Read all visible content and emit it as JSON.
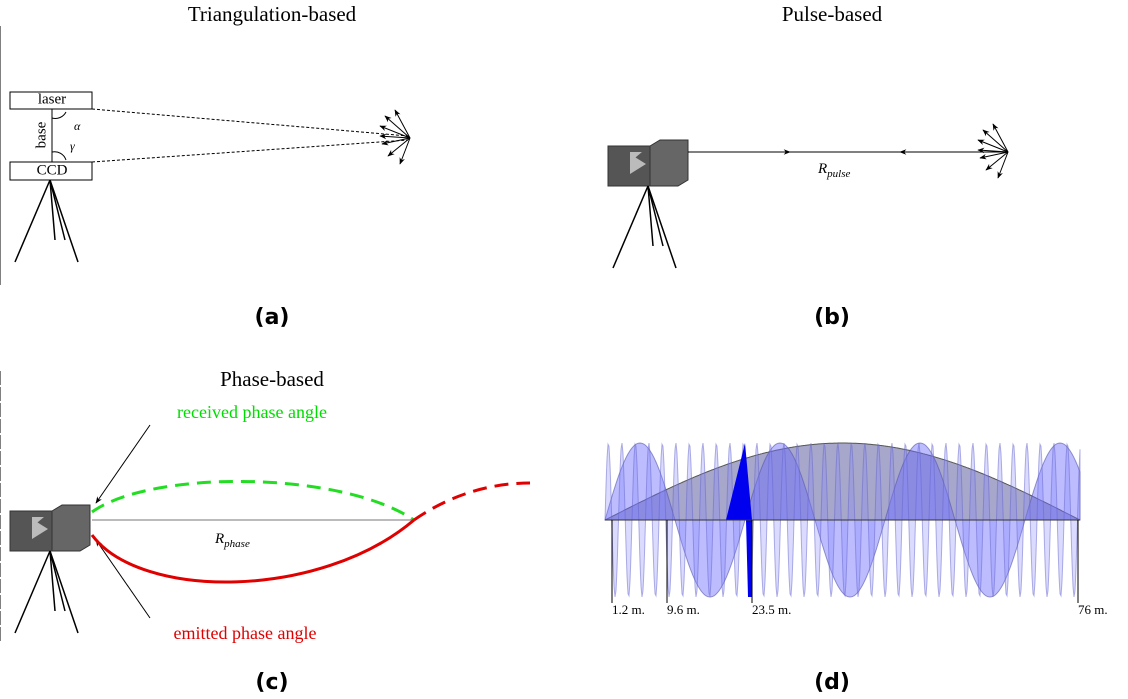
{
  "panels": [
    {
      "title": "Triangulation-based",
      "caption": "(a)",
      "labels": {
        "laser": "laser",
        "base": "base",
        "ccd": "CCD",
        "alpha": "α",
        "gamma": "γ"
      }
    },
    {
      "title": "Pulse-based",
      "caption": "(b)",
      "range": {
        "main": "R",
        "sub": "pulse"
      }
    },
    {
      "title": "Phase-based",
      "caption": "(c)",
      "received": "received phase angle",
      "emitted": "emitted phase angle",
      "range": {
        "main": "R",
        "sub": "phase"
      }
    },
    {
      "caption": "(d)",
      "distances": [
        "1.2 m.",
        "9.6 m.",
        "23.5 m.",
        "76 m."
      ]
    }
  ]
}
